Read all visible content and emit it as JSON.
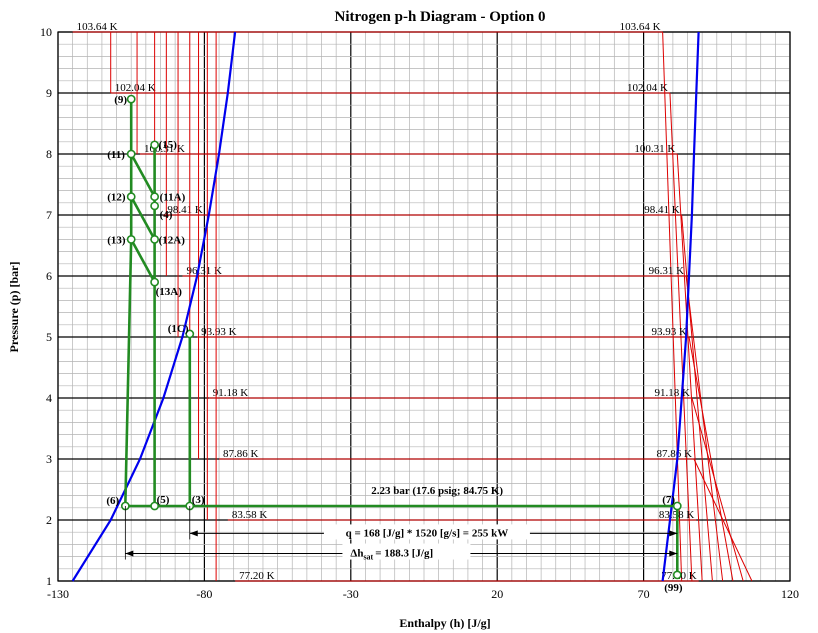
{
  "chart_data": {
    "type": "line",
    "title": "Nitrogen p-h Diagram - Option 0",
    "xlabel": "Enthalpy (h) [J/g]",
    "ylabel": "Pressure (p) [bar]",
    "xlim": [
      -130,
      120
    ],
    "ylim": [
      1,
      10
    ],
    "x_ticks": [
      "-130",
      "-80",
      "-30",
      "20",
      "70",
      "120"
    ],
    "y_ticks": [
      "1",
      "2",
      "3",
      "4",
      "5",
      "6",
      "7",
      "8",
      "9",
      "10"
    ],
    "grid": true,
    "saturation_dome": {
      "color": "#0000ee",
      "liquid": [
        [
          -125,
          1
        ],
        [
          -112,
          2
        ],
        [
          -102,
          3
        ],
        [
          -94,
          4
        ],
        [
          -87.5,
          5
        ],
        [
          -82.5,
          6
        ],
        [
          -78.5,
          7
        ],
        [
          -75,
          8
        ],
        [
          -72,
          9
        ],
        [
          -69.5,
          10
        ]
      ],
      "vapor": [
        [
          76.5,
          1
        ],
        [
          79,
          2
        ],
        [
          81.5,
          3
        ],
        [
          83,
          4
        ],
        [
          84.5,
          5
        ],
        [
          85.5,
          6
        ],
        [
          86.5,
          7
        ],
        [
          87.2,
          8
        ],
        [
          88,
          9
        ],
        [
          88.8,
          10
        ]
      ]
    },
    "isotherms": [
      {
        "label": "103.64 K",
        "p": 10
      },
      {
        "label": "102.04 K",
        "p": 9
      },
      {
        "label": "100.31 K",
        "p": 8
      },
      {
        "label": "98.41 K",
        "p": 7
      },
      {
        "label": "96.31 K",
        "p": 6
      },
      {
        "label": "93.93 K",
        "p": 5
      },
      {
        "label": "91.18 K",
        "p": 4
      },
      {
        "label": "87.86 K",
        "p": 3
      },
      {
        "label": "83.58 K",
        "p": 2
      },
      {
        "label": "77.20 K",
        "p": 1
      }
    ],
    "isotherm_color": "#dd0000",
    "liquid_isotherm_h": [
      -125,
      -112,
      -103,
      -97,
      -93,
      -89,
      -85,
      -82,
      -79,
      -76
    ],
    "vapor_isotherm_h_at_1bar": [
      83,
      86.5,
      90,
      93.5,
      97,
      100.5,
      104,
      107
    ],
    "process_color": "#228b22",
    "process_points": [
      {
        "label": "(9)",
        "h": -105,
        "p": 8.9
      },
      {
        "label": "(11)",
        "h": -105,
        "p": 8
      },
      {
        "label": "(12)",
        "h": -105,
        "p": 7.3
      },
      {
        "label": "(13)",
        "h": -105,
        "p": 6.6
      },
      {
        "label": "(15)",
        "h": -97,
        "p": 8.15
      },
      {
        "label": "(11A)",
        "h": -97,
        "p": 7.3
      },
      {
        "label": "(4)",
        "h": -97,
        "p": 7.15
      },
      {
        "label": "(12A)",
        "h": -97,
        "p": 6.6
      },
      {
        "label": "(13A)",
        "h": -97,
        "p": 5.9
      },
      {
        "label": "(1C)",
        "h": -85,
        "p": 5.05
      },
      {
        "label": "(6)",
        "h": -107,
        "p": 2.23
      },
      {
        "label": "(5)",
        "h": -97,
        "p": 2.23
      },
      {
        "label": "(3)",
        "h": -85,
        "p": 2.23
      },
      {
        "label": "(7)",
        "h": 81.5,
        "p": 2.23
      },
      {
        "label": "(99)",
        "h": 81.5,
        "p": 1.1
      }
    ],
    "process_lines": [
      [
        [
          -105,
          8.9
        ],
        [
          -105,
          6.6
        ]
      ],
      [
        [
          -105,
          8
        ],
        [
          -97,
          7.3
        ]
      ],
      [
        [
          -105,
          7.3
        ],
        [
          -97,
          6.6
        ]
      ],
      [
        [
          -105,
          6.6
        ],
        [
          -97,
          5.9
        ]
      ],
      [
        [
          -97,
          8.15
        ],
        [
          -97,
          2.23
        ]
      ],
      [
        [
          -105,
          6.6
        ],
        [
          -107,
          2.23
        ]
      ],
      [
        [
          -85,
          5.05
        ],
        [
          -85,
          2.23
        ]
      ],
      [
        [
          -107,
          2.23
        ],
        [
          81.5,
          2.23
        ]
      ],
      [
        [
          81.5,
          2.23
        ],
        [
          81.5,
          1.1
        ]
      ]
    ],
    "annotations": {
      "pressure_label": "2.23 bar (17.6 psig; 84.75 K)",
      "q_label": "q = 168 [J/g] * 1520 [g/s] = 255 kW",
      "q_range": [
        -85,
        81.5
      ],
      "q_p": 1.78,
      "dh_main": "Δh",
      "dh_sub": "sat",
      "dh_value": "= 188.3 [J/g]",
      "dh_range": [
        -107,
        81.5
      ],
      "dh_p": 1.45
    }
  }
}
